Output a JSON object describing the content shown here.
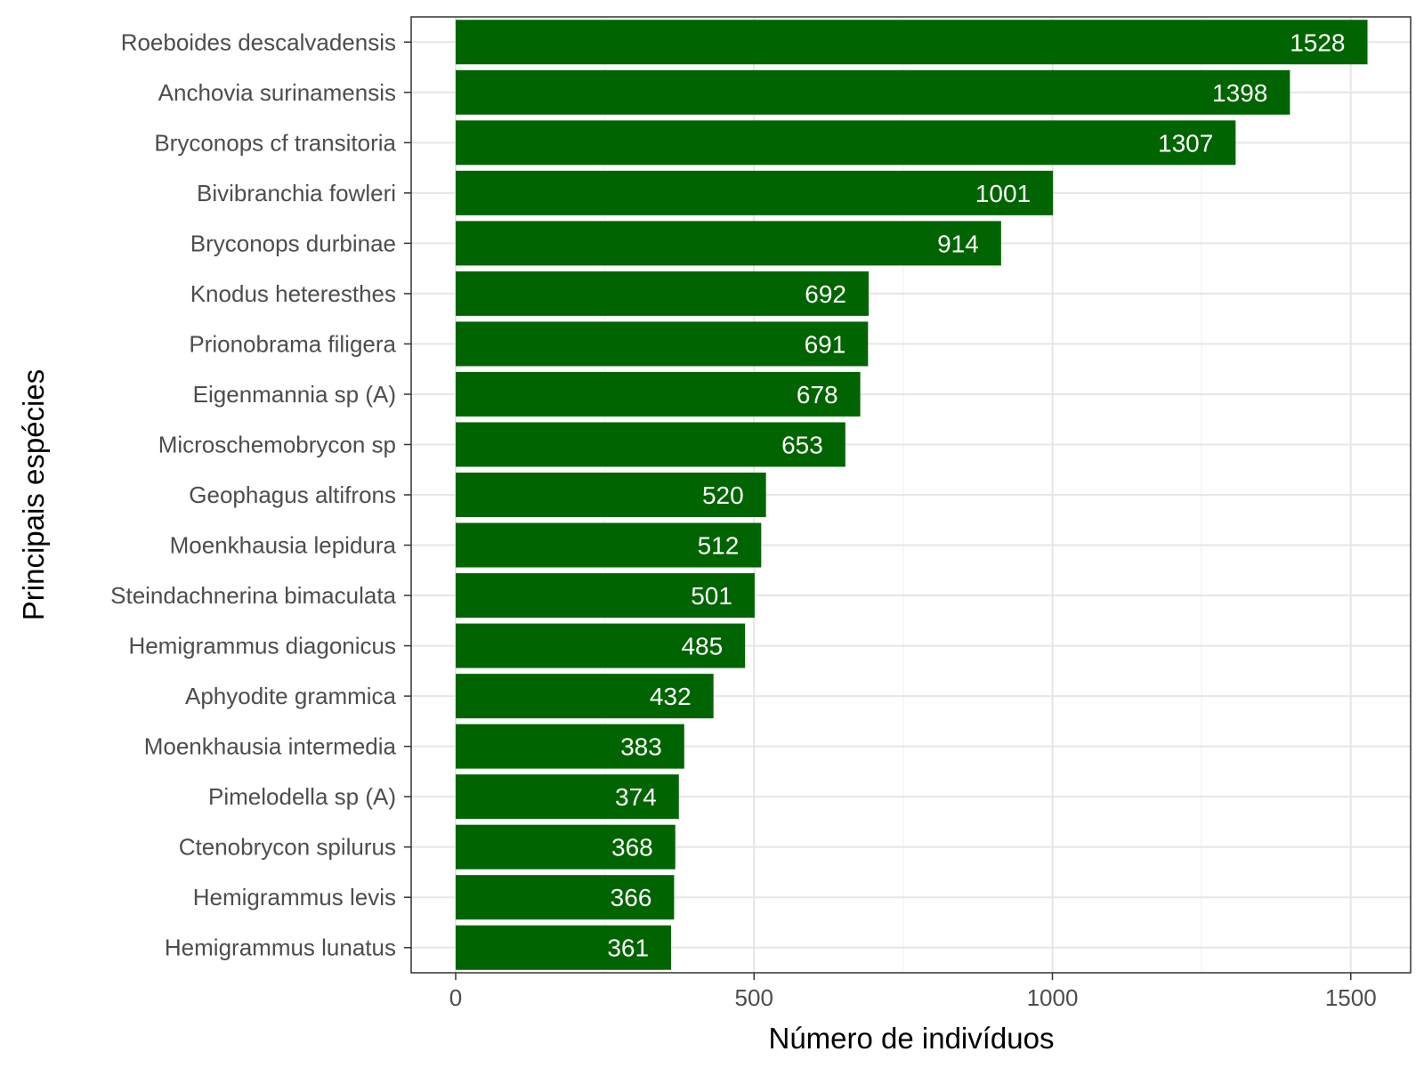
{
  "chart_data": {
    "type": "bar",
    "orientation": "horizontal",
    "title": "",
    "xlabel": "Número de indivíduos",
    "ylabel": "Principais espécies",
    "xlim": [
      -72,
      1595
    ],
    "xticks": [
      0,
      500,
      1000,
      1500
    ],
    "grid": true,
    "legend": "none",
    "bar_color": "#006400",
    "categories": [
      "Roeboides descalvadensis",
      "Anchovia surinamensis",
      "Bryconops cf transitoria",
      "Bivibranchia fowleri",
      "Bryconops durbinae",
      "Knodus heteresthes",
      "Prionobrama filigera",
      "Eigenmannia sp (A)",
      "Microschemobrycon sp",
      "Geophagus altifrons",
      "Moenkhausia lepidura",
      "Steindachnerina bimaculata",
      "Hemigrammus diagonicus",
      "Aphyodite grammica",
      "Moenkhausia intermedia",
      "Pimelodella sp (A)",
      "Ctenobrycon spilurus",
      "Hemigrammus levis",
      "Hemigrammus lunatus"
    ],
    "values": [
      1528,
      1398,
      1307,
      1001,
      914,
      692,
      691,
      678,
      653,
      520,
      512,
      501,
      485,
      432,
      383,
      374,
      368,
      366,
      361
    ]
  }
}
